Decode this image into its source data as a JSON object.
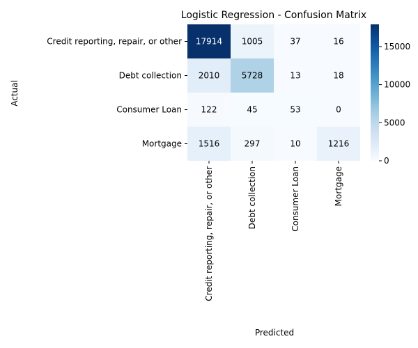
{
  "chart_data": {
    "type": "heatmap",
    "title": "Logistic Regression - Confusion Matrix",
    "xlabel": "Predicted",
    "ylabel": "Actual",
    "x_categories": [
      "Credit reporting, repair, or other",
      "Debt collection",
      "Consumer Loan",
      "Mortgage"
    ],
    "y_categories": [
      "Credit reporting, repair, or other",
      "Debt collection",
      "Consumer Loan",
      "Mortgage"
    ],
    "values": [
      [
        17914,
        1005,
        37,
        16
      ],
      [
        2010,
        5728,
        13,
        18
      ],
      [
        122,
        45,
        53,
        0
      ],
      [
        1516,
        297,
        10,
        1216
      ]
    ],
    "colorbar": {
      "colormap": "Blues",
      "range": [
        0,
        17914
      ],
      "ticks": [
        0,
        5000,
        10000,
        15000
      ],
      "tick_labels": [
        "0",
        "5000",
        "10000",
        "15000"
      ]
    }
  }
}
